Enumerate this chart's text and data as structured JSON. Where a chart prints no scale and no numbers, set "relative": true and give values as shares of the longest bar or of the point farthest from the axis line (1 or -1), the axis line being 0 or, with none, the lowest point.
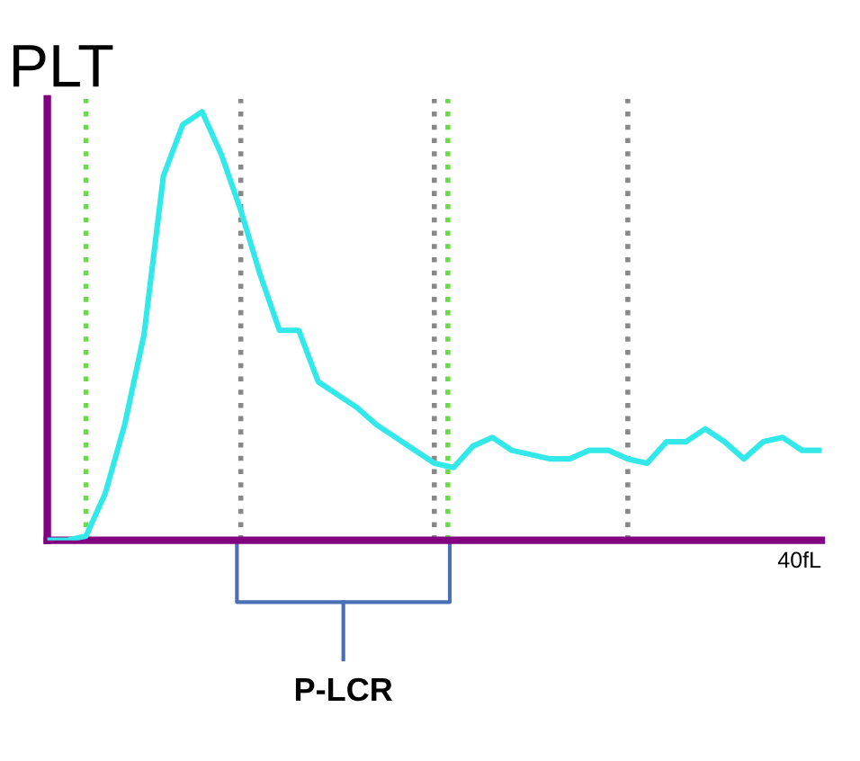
{
  "chart_data": {
    "type": "line",
    "title": "PLT",
    "relative": true,
    "categories": [
      null,
      null,
      null,
      null,
      null,
      null,
      null,
      null,
      null,
      null,
      null,
      null,
      null,
      null,
      null,
      null,
      null,
      null,
      null,
      null,
      null,
      null,
      null,
      null,
      null,
      null,
      null,
      null,
      null,
      null,
      null,
      null,
      null,
      null,
      null,
      null,
      null,
      null,
      null,
      null,
      null
    ],
    "series": [
      {
        "color": "#33e8e8",
        "values": [
          0,
          0,
          0.01,
          0.11,
          0.27,
          0.48,
          0.85,
          0.97,
          1.0,
          0.9,
          0.77,
          0.62,
          0.49,
          0.49,
          0.37,
          0.34,
          0.31,
          0.27,
          0.24,
          0.21,
          0.18,
          0.17,
          0.22,
          0.24,
          0.21,
          0.2,
          0.19,
          0.19,
          0.21,
          0.21,
          0.19,
          0.18,
          0.23,
          0.23,
          0.26,
          0.23,
          0.19,
          0.23,
          0.24,
          0.21,
          0.21
        ]
      }
    ],
    "grid": "x",
    "annotations": [
      "P-LCR",
      "40fL"
    ],
    "legend": false,
    "marker": "none",
    "line_style": "solid"
  }
}
